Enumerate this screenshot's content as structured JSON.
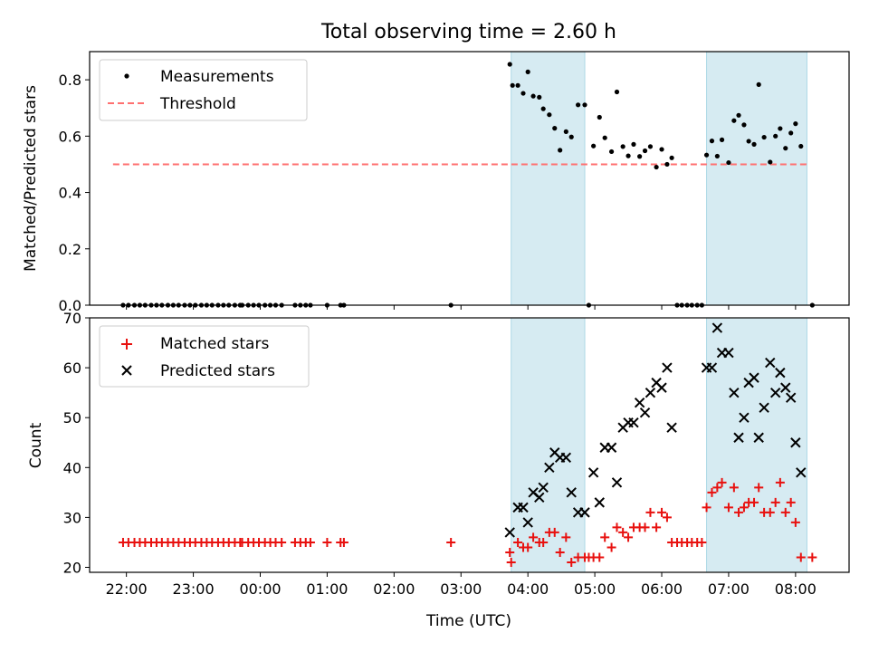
{
  "title": "Total observing time = 2.60 h",
  "colors": {
    "measurement": "#000000",
    "threshold": "#ff7070",
    "matched": "#e8110f",
    "predicted": "#000000",
    "band": "#add8e6"
  },
  "chart_data": [
    {
      "type": "scatter",
      "panel": "top",
      "ylabel": "Matched/Predicted stars",
      "xlabel": "",
      "x_unit": "hours after 00:00 UTC (negative = previous day)",
      "xlim": [
        -2.55,
        8.8
      ],
      "ylim": [
        0,
        0.9
      ],
      "yticks": [
        0.0,
        0.2,
        0.4,
        0.6,
        0.8
      ],
      "ytick_labels": [
        "0.0",
        "0.2",
        "0.4",
        "0.6",
        "0.8"
      ],
      "legend": {
        "position": "upper-left",
        "entries": [
          "Measurements",
          "Threshold"
        ]
      },
      "shaded_intervals": [
        [
          3.75,
          4.85
        ],
        [
          6.67,
          8.17
        ]
      ],
      "threshold": {
        "name": "Threshold",
        "y": 0.5,
        "x_start": -2.2,
        "x_end": 8.2
      },
      "series": [
        {
          "name": "Measurements",
          "marker": "dot",
          "points": [
            [
              -2.05,
              0
            ],
            [
              -1.97,
              0
            ],
            [
              -1.88,
              0
            ],
            [
              -1.8,
              0
            ],
            [
              -1.72,
              0
            ],
            [
              -1.63,
              0
            ],
            [
              -1.55,
              0
            ],
            [
              -1.47,
              0
            ],
            [
              -1.38,
              0
            ],
            [
              -1.3,
              0
            ],
            [
              -1.22,
              0
            ],
            [
              -1.13,
              0
            ],
            [
              -1.05,
              0
            ],
            [
              -0.97,
              0
            ],
            [
              -0.88,
              0
            ],
            [
              -0.8,
              0
            ],
            [
              -0.72,
              0
            ],
            [
              -0.63,
              0
            ],
            [
              -0.55,
              0
            ],
            [
              -0.47,
              0
            ],
            [
              -0.38,
              0
            ],
            [
              -0.3,
              0
            ],
            [
              -0.27,
              0
            ],
            [
              -0.18,
              0
            ],
            [
              -0.1,
              0
            ],
            [
              -0.02,
              0
            ],
            [
              0.07,
              0
            ],
            [
              0.15,
              0
            ],
            [
              0.23,
              0
            ],
            [
              0.32,
              0
            ],
            [
              0.52,
              0
            ],
            [
              0.6,
              0
            ],
            [
              0.68,
              0
            ],
            [
              0.75,
              0
            ],
            [
              1.0,
              0
            ],
            [
              1.2,
              0
            ],
            [
              1.25,
              0
            ],
            [
              2.85,
              0
            ],
            [
              3.73,
              0.855
            ],
            [
              3.77,
              0.78
            ],
            [
              3.85,
              0.78
            ],
            [
              3.93,
              0.752
            ],
            [
              4.0,
              0.828
            ],
            [
              4.08,
              0.742
            ],
            [
              4.17,
              0.738
            ],
            [
              4.23,
              0.697
            ],
            [
              4.32,
              0.676
            ],
            [
              4.4,
              0.628
            ],
            [
              4.48,
              0.55
            ],
            [
              4.57,
              0.616
            ],
            [
              4.65,
              0.597
            ],
            [
              4.75,
              0.711
            ],
            [
              4.85,
              0.711
            ],
            [
              4.91,
              0.0
            ],
            [
              4.98,
              0.565
            ],
            [
              5.07,
              0.667
            ],
            [
              5.15,
              0.594
            ],
            [
              5.25,
              0.545
            ],
            [
              5.33,
              0.757
            ],
            [
              5.42,
              0.563
            ],
            [
              5.5,
              0.53
            ],
            [
              5.58,
              0.571
            ],
            [
              5.67,
              0.528
            ],
            [
              5.75,
              0.548
            ],
            [
              5.83,
              0.563
            ],
            [
              5.92,
              0.49
            ],
            [
              6.0,
              0.553
            ],
            [
              6.08,
              0.5
            ],
            [
              6.15,
              0.523
            ],
            [
              6.23,
              0.0
            ],
            [
              6.3,
              0.0
            ],
            [
              6.38,
              0.0
            ],
            [
              6.45,
              0.0
            ],
            [
              6.53,
              0.0
            ],
            [
              6.6,
              0.0
            ],
            [
              6.67,
              0.533
            ],
            [
              6.75,
              0.583
            ],
            [
              6.83,
              0.529
            ],
            [
              6.9,
              0.587
            ],
            [
              7.0,
              0.506
            ],
            [
              7.08,
              0.655
            ],
            [
              7.15,
              0.674
            ],
            [
              7.23,
              0.64
            ],
            [
              7.3,
              0.582
            ],
            [
              7.38,
              0.571
            ],
            [
              7.45,
              0.783
            ],
            [
              7.53,
              0.596
            ],
            [
              7.62,
              0.508
            ],
            [
              7.7,
              0.6
            ],
            [
              7.77,
              0.627
            ],
            [
              7.85,
              0.557
            ],
            [
              7.93,
              0.611
            ],
            [
              8.0,
              0.644
            ],
            [
              8.08,
              0.564
            ],
            [
              8.25,
              0.0
            ]
          ]
        }
      ]
    },
    {
      "type": "scatter",
      "panel": "bottom",
      "ylabel": "Count",
      "xlabel": "Time (UTC)",
      "x_unit": "hours after 00:00 UTC (negative = previous day)",
      "xlim": [
        -2.55,
        8.8
      ],
      "ylim": [
        19,
        70
      ],
      "yticks": [
        20,
        30,
        40,
        50,
        60,
        70
      ],
      "ytick_labels": [
        "20",
        "30",
        "40",
        "50",
        "60",
        "70"
      ],
      "xticks": [
        -2,
        -1,
        0,
        1,
        2,
        3,
        4,
        5,
        6,
        7,
        8
      ],
      "xtick_labels": [
        "22:00",
        "23:00",
        "00:00",
        "01:00",
        "02:00",
        "03:00",
        "04:00",
        "05:00",
        "06:00",
        "07:00",
        "08:00"
      ],
      "legend": {
        "position": "upper-left",
        "entries": [
          "Matched stars",
          "Predicted stars"
        ]
      },
      "shaded_intervals": [
        [
          3.75,
          4.85
        ],
        [
          6.67,
          8.17
        ]
      ],
      "series": [
        {
          "name": "Matched stars",
          "marker": "plus",
          "points": [
            [
              -2.05,
              25
            ],
            [
              -1.97,
              25
            ],
            [
              -1.88,
              25
            ],
            [
              -1.8,
              25
            ],
            [
              -1.72,
              25
            ],
            [
              -1.63,
              25
            ],
            [
              -1.55,
              25
            ],
            [
              -1.47,
              25
            ],
            [
              -1.38,
              25
            ],
            [
              -1.3,
              25
            ],
            [
              -1.22,
              25
            ],
            [
              -1.13,
              25
            ],
            [
              -1.05,
              25
            ],
            [
              -0.97,
              25
            ],
            [
              -0.88,
              25
            ],
            [
              -0.8,
              25
            ],
            [
              -0.72,
              25
            ],
            [
              -0.63,
              25
            ],
            [
              -0.55,
              25
            ],
            [
              -0.47,
              25
            ],
            [
              -0.38,
              25
            ],
            [
              -0.3,
              25
            ],
            [
              -0.27,
              25
            ],
            [
              -0.18,
              25
            ],
            [
              -0.1,
              25
            ],
            [
              -0.02,
              25
            ],
            [
              0.07,
              25
            ],
            [
              0.15,
              25
            ],
            [
              0.23,
              25
            ],
            [
              0.32,
              25
            ],
            [
              0.52,
              25
            ],
            [
              0.6,
              25
            ],
            [
              0.68,
              25
            ],
            [
              0.75,
              25
            ],
            [
              1.0,
              25
            ],
            [
              1.2,
              25
            ],
            [
              1.25,
              25
            ],
            [
              2.85,
              25
            ],
            [
              3.73,
              23
            ],
            [
              3.75,
              21
            ],
            [
              3.85,
              25
            ],
            [
              3.93,
              24
            ],
            [
              4.0,
              24
            ],
            [
              4.08,
              26
            ],
            [
              4.17,
              25
            ],
            [
              4.23,
              25
            ],
            [
              4.32,
              27
            ],
            [
              4.4,
              27
            ],
            [
              4.48,
              23
            ],
            [
              4.57,
              26
            ],
            [
              4.65,
              21
            ],
            [
              4.75,
              22
            ],
            [
              4.85,
              22
            ],
            [
              4.91,
              22
            ],
            [
              4.98,
              22
            ],
            [
              5.07,
              22
            ],
            [
              5.15,
              26
            ],
            [
              5.25,
              24
            ],
            [
              5.33,
              28
            ],
            [
              5.42,
              27
            ],
            [
              5.5,
              26
            ],
            [
              5.58,
              28
            ],
            [
              5.67,
              28
            ],
            [
              5.75,
              28
            ],
            [
              5.83,
              31
            ],
            [
              5.92,
              28
            ],
            [
              6.0,
              31
            ],
            [
              6.08,
              30
            ],
            [
              6.15,
              25
            ],
            [
              6.23,
              25
            ],
            [
              6.3,
              25
            ],
            [
              6.38,
              25
            ],
            [
              6.45,
              25
            ],
            [
              6.53,
              25
            ],
            [
              6.6,
              25
            ],
            [
              6.67,
              32
            ],
            [
              6.75,
              35
            ],
            [
              6.83,
              36
            ],
            [
              6.9,
              37
            ],
            [
              7.0,
              32
            ],
            [
              7.08,
              36
            ],
            [
              7.15,
              31
            ],
            [
              7.23,
              32
            ],
            [
              7.3,
              33
            ],
            [
              7.38,
              33
            ],
            [
              7.45,
              36
            ],
            [
              7.53,
              31
            ],
            [
              7.62,
              31
            ],
            [
              7.7,
              33
            ],
            [
              7.77,
              37
            ],
            [
              7.85,
              31
            ],
            [
              7.93,
              33
            ],
            [
              8.0,
              29
            ],
            [
              8.08,
              22
            ],
            [
              8.25,
              22
            ]
          ]
        },
        {
          "name": "Predicted stars",
          "marker": "x",
          "points": [
            [
              3.73,
              27
            ],
            [
              3.85,
              32
            ],
            [
              3.93,
              32
            ],
            [
              4.0,
              29
            ],
            [
              4.08,
              35
            ],
            [
              4.17,
              34
            ],
            [
              4.23,
              36
            ],
            [
              4.32,
              40
            ],
            [
              4.4,
              43
            ],
            [
              4.48,
              42
            ],
            [
              4.57,
              42
            ],
            [
              4.65,
              35
            ],
            [
              4.75,
              31
            ],
            [
              4.85,
              31
            ],
            [
              4.98,
              39
            ],
            [
              5.07,
              33
            ],
            [
              5.15,
              44
            ],
            [
              5.25,
              44
            ],
            [
              5.33,
              37
            ],
            [
              5.42,
              48
            ],
            [
              5.5,
              49
            ],
            [
              5.58,
              49
            ],
            [
              5.67,
              53
            ],
            [
              5.75,
              51
            ],
            [
              5.83,
              55
            ],
            [
              5.92,
              57
            ],
            [
              6.0,
              56
            ],
            [
              6.08,
              60
            ],
            [
              6.15,
              48
            ],
            [
              6.67,
              60
            ],
            [
              6.75,
              60
            ],
            [
              6.83,
              68
            ],
            [
              6.9,
              63
            ],
            [
              7.0,
              63
            ],
            [
              7.08,
              55
            ],
            [
              7.15,
              46
            ],
            [
              7.23,
              50
            ],
            [
              7.3,
              57
            ],
            [
              7.38,
              58
            ],
            [
              7.45,
              46
            ],
            [
              7.53,
              52
            ],
            [
              7.62,
              61
            ],
            [
              7.7,
              55
            ],
            [
              7.77,
              59
            ],
            [
              7.85,
              56
            ],
            [
              7.93,
              54
            ],
            [
              8.0,
              45
            ],
            [
              8.08,
              39
            ]
          ]
        }
      ]
    }
  ]
}
